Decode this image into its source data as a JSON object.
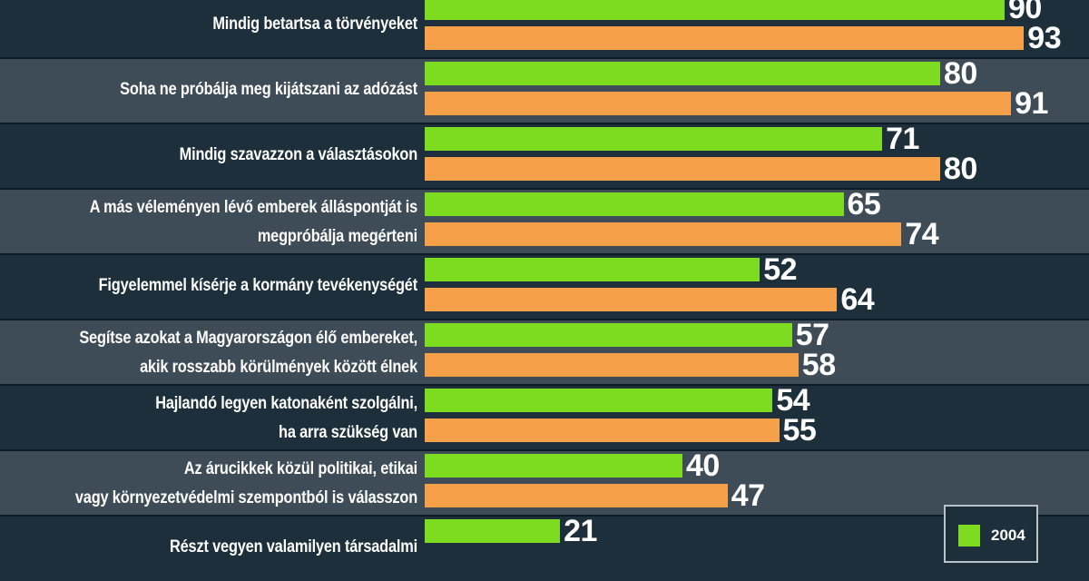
{
  "chart_data": {
    "type": "bar",
    "orientation": "horizontal",
    "categories": [
      [
        "Mindig betartsa a törvényeket"
      ],
      [
        "Soha ne próbálja meg kijátszani az adózást"
      ],
      [
        "Mindig szavazzon a választásokon"
      ],
      [
        "A más véleményen lévő emberek álláspontját is",
        "megpróbálja megérteni"
      ],
      [
        "Figyelemmel kísérje a kormány tevékenységét"
      ],
      [
        "Segítse azokat a Magyarországon élő embereket,",
        "akik rosszabb körülmények között élnek"
      ],
      [
        "Hajlandó legyen katonaként szolgálni,",
        "ha arra szükség van"
      ],
      [
        "Az árucikkek közül politikai, etikai",
        "vagy környezetvédelmi szempontból is válasszon"
      ],
      [
        "Részt vegyen valamilyen társadalmi"
      ]
    ],
    "series": [
      {
        "name": "2004",
        "values": [
          90,
          80,
          71,
          65,
          52,
          57,
          54,
          40,
          21
        ],
        "color": "#7ddc1f"
      },
      {
        "values": [
          93,
          91,
          80,
          74,
          64,
          58,
          55,
          47,
          null
        ],
        "color": "#f7a04a"
      }
    ],
    "xlim": [
      0,
      100
    ],
    "legend": {
      "entries": [
        "2004"
      ],
      "position": "bottom-right"
    },
    "grid": false
  },
  "colors": {
    "background_dark": "#1e2f3c",
    "background_light": "#3e4c57"
  }
}
